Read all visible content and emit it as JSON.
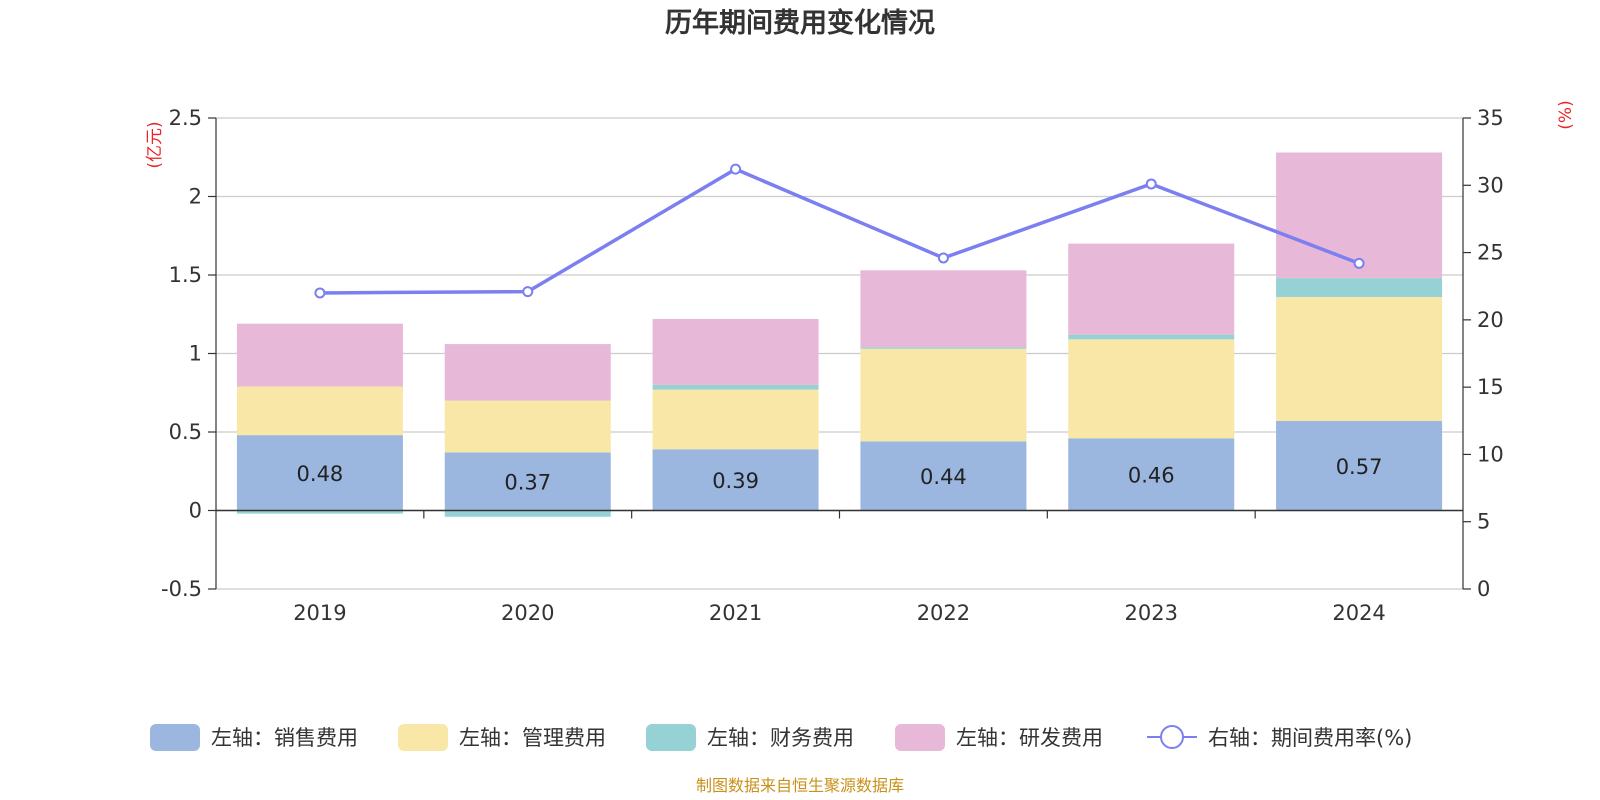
{
  "chart_data": {
    "type": "bar",
    "title": "历年期间费用变化情况",
    "categories": [
      "2019",
      "2020",
      "2021",
      "2022",
      "2023",
      "2024"
    ],
    "left_axis": {
      "unit": "(亿元)",
      "min": -0.5,
      "max": 2.5,
      "ticks": [
        "-0.5",
        "0",
        "0.5",
        "1",
        "1.5",
        "2",
        "2.5"
      ]
    },
    "right_axis": {
      "unit": "(%)",
      "min": 0,
      "max": 35,
      "ticks": [
        "0",
        "5",
        "10",
        "15",
        "20",
        "25",
        "30",
        "35"
      ]
    },
    "series": [
      {
        "name": "左轴：销售费用",
        "color": "#9bb7e0",
        "values": [
          0.48,
          0.37,
          0.39,
          0.44,
          0.46,
          0.57
        ],
        "labels": [
          "0.48",
          "0.37",
          "0.39",
          "0.44",
          "0.46",
          "0.57"
        ]
      },
      {
        "name": "左轴：管理费用",
        "color": "#f8e7a7",
        "values": [
          0.31,
          0.33,
          0.38,
          0.59,
          0.63,
          0.79
        ]
      },
      {
        "name": "左轴：财务费用",
        "color": "#96d2d5",
        "values": [
          -0.02,
          -0.04,
          0.03,
          0.01,
          0.03,
          0.12
        ]
      },
      {
        "name": "左轴：研发费用",
        "color": "#e8b8d8",
        "values": [
          0.4,
          0.36,
          0.42,
          0.49,
          0.58,
          0.8
        ]
      },
      {
        "name": "右轴：期间费用率(%)",
        "color": "#7b7ff0",
        "type": "line",
        "axis": "right",
        "values": [
          22.0,
          22.1,
          31.2,
          24.6,
          30.1,
          24.2
        ]
      }
    ],
    "legend_position": "bottom",
    "grid": true,
    "source": "制图数据来自恒生聚源数据库"
  }
}
